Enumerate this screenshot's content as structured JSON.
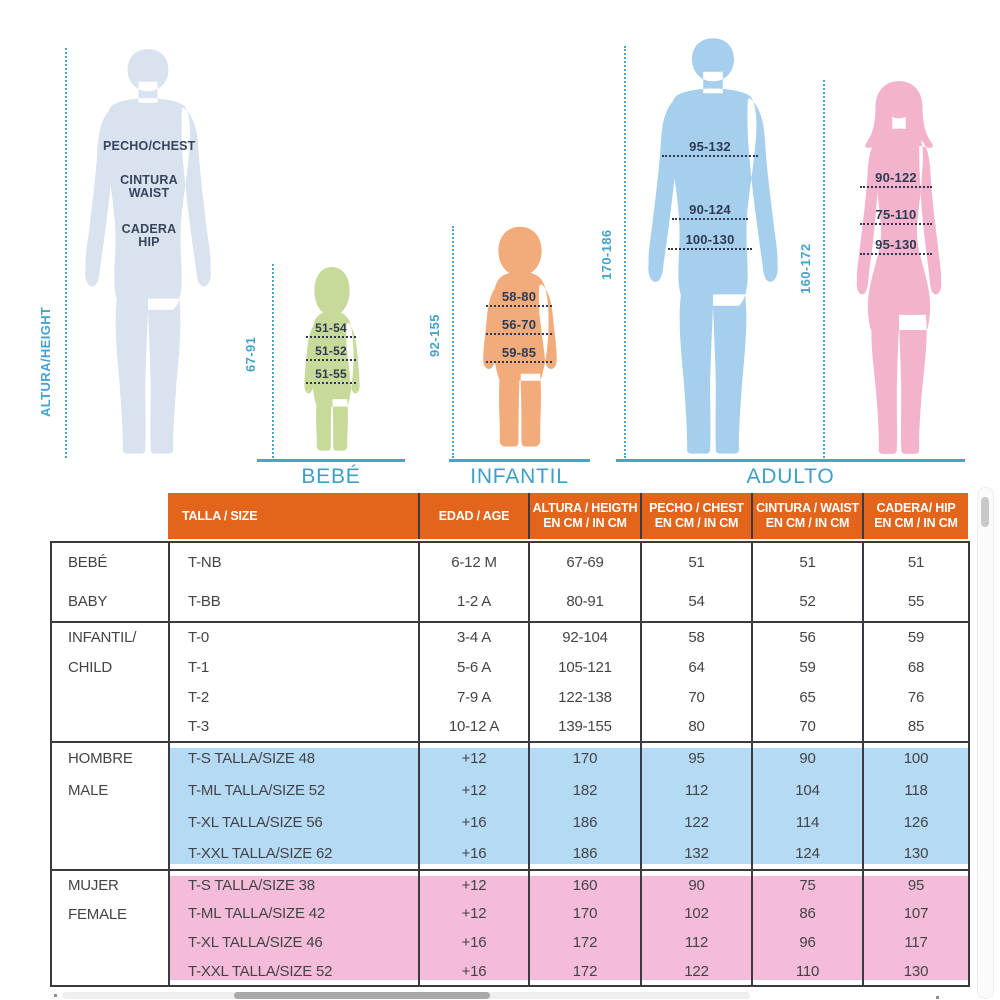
{
  "figures": {
    "axis_label": "ALTURA/HEIGHT",
    "reference": {
      "chest": "PECHO/CHEST",
      "waist_line1": "CINTURA",
      "waist_line2": "WAIST",
      "hip_line1": "CADERA",
      "hip_line2": "HIP"
    },
    "bebe": {
      "label": "BEBÉ",
      "height": "67-91",
      "chest": "51-54",
      "waist": "51-52",
      "hip": "51-55"
    },
    "infantil": {
      "label": "INFANTIL",
      "height": "92-155",
      "chest": "58-80",
      "waist": "56-70",
      "hip": "59-85"
    },
    "adulto": {
      "label": "ADULTO",
      "male": {
        "height": "170-186",
        "chest": "95-132",
        "waist": "90-124",
        "hip": "100-130"
      },
      "female": {
        "height": "160-172",
        "chest": "90-122",
        "waist": "75-110",
        "hip": "95-130"
      }
    }
  },
  "table": {
    "columns": [
      {
        "slug": "talla-size",
        "line1": "TALLA / SIZE",
        "line2": ""
      },
      {
        "slug": "edad-age",
        "line1": "EDAD / AGE",
        "line2": ""
      },
      {
        "slug": "altura-height",
        "line1": "ALTURA / HEIGTH",
        "line2": "EN CM / IN CM"
      },
      {
        "slug": "pecho-chest",
        "line1": "PECHO / CHEST",
        "line2": "EN CM / IN CM"
      },
      {
        "slug": "cintura-waist",
        "line1": "CINTURA / WAIST",
        "line2": "EN CM / IN CM"
      },
      {
        "slug": "cadera-hip",
        "line1": "CADERA/ HIP",
        "line2": "EN CM / IN CM"
      }
    ],
    "groups": [
      {
        "id": "bebe",
        "label_line1": "BEBÉ",
        "label_line2": "BABY",
        "highlight": null,
        "rows": [
          [
            "T-NB",
            "6-12 M",
            "67-69",
            "51",
            "51",
            "51"
          ],
          [
            "T-BB",
            "1-2 A",
            "80-91",
            "54",
            "52",
            "55"
          ]
        ]
      },
      {
        "id": "infantil",
        "label_line1": "INFANTIL/",
        "label_line2": "CHILD",
        "highlight": null,
        "rows": [
          [
            "T-0",
            "3-4 A",
            "92-104",
            "58",
            "56",
            "59"
          ],
          [
            "T-1",
            "5-6 A",
            "105-121",
            "64",
            "59",
            "68"
          ],
          [
            "T-2",
            "7-9 A",
            "122-138",
            "70",
            "65",
            "76"
          ],
          [
            "T-3",
            "10-12 A",
            "139-155",
            "80",
            "70",
            "85"
          ]
        ]
      },
      {
        "id": "hombre",
        "label_line1": "HOMBRE",
        "label_line2": "MALE",
        "highlight": "#B5DAF4",
        "rows": [
          [
            "T-S TALLA/SIZE 48",
            "+12",
            "170",
            "95",
            "90",
            "100"
          ],
          [
            "T-ML TALLA/SIZE 52",
            "+12",
            "182",
            "112",
            "104",
            "118"
          ],
          [
            "T-XL TALLA/SIZE 56",
            "+16",
            "186",
            "122",
            "114",
            "126"
          ],
          [
            "T-XXL TALLA/SIZE 62",
            "+16",
            "186",
            "132",
            "124",
            "130"
          ]
        ]
      },
      {
        "id": "mujer",
        "label_line1": "MUJER",
        "label_line2": "FEMALE",
        "highlight": "#F4BCD8",
        "rows": [
          [
            "T-S TALLA/SIZE 38",
            "+12",
            "160",
            "90",
            "75",
            "95"
          ],
          [
            "T-ML TALLA/SIZE 42",
            "+12",
            "170",
            "102",
            "86",
            "107"
          ],
          [
            "T-XL TALLA/SIZE 46",
            "+16",
            "172",
            "112",
            "96",
            "117"
          ],
          [
            "T-XXL TALLA/SIZE 52",
            "+16",
            "172",
            "122",
            "110",
            "130"
          ]
        ]
      }
    ]
  },
  "colors": {
    "accent_blue": "#3FA8CF",
    "header_orange": "#E2651B",
    "reference_grey": "#D9E2EF",
    "baby_green": "#C7DA99",
    "child_orange": "#F2AC7B",
    "male_blue": "#A6CFEE",
    "female_pink": "#F3B3CD",
    "row_blue": "#B5DAF4",
    "row_pink": "#F4BCD8"
  }
}
